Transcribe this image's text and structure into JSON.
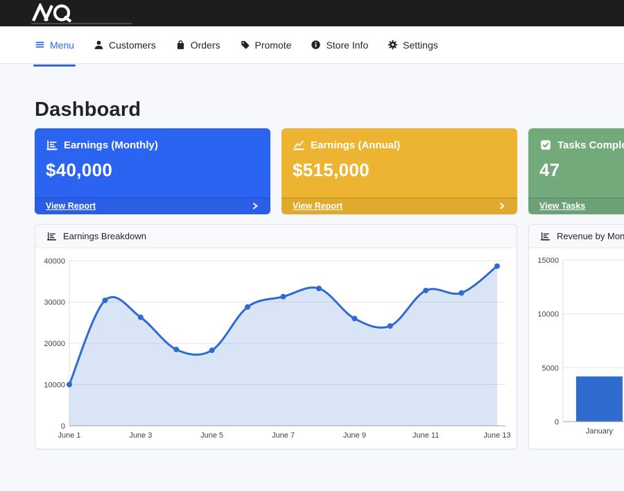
{
  "topbar": {
    "logo_icon": "aq-monogram-logo"
  },
  "nav": {
    "items": [
      {
        "label": "Menu",
        "icon": "hamburger-icon",
        "active": true
      },
      {
        "label": "Customers",
        "icon": "person-icon",
        "active": false
      },
      {
        "label": "Orders",
        "icon": "shopping-bag-icon",
        "active": false
      },
      {
        "label": "Promote",
        "icon": "tag-icon",
        "active": false
      },
      {
        "label": "Store Info",
        "icon": "info-circle-icon",
        "active": false
      },
      {
        "label": "Settings",
        "icon": "gear-icon",
        "active": false
      }
    ]
  },
  "page": {
    "title": "Dashboard"
  },
  "cards": [
    {
      "title": "Earnings (Monthly)",
      "value": "$40,000",
      "link": "View Report",
      "color": "#2c64f2",
      "icon": "bar-chart-icon"
    },
    {
      "title": "Earnings (Annual)",
      "value": "$515,000",
      "link": "View Report",
      "color": "#edb431",
      "icon": "line-chart-icon"
    },
    {
      "title": "Tasks Completed",
      "value": "47",
      "link": "View Tasks",
      "color": "#72aa7c",
      "icon": "check-square-icon"
    }
  ],
  "panels": [
    {
      "title": "Earnings Breakdown",
      "icon": "bar-chart-icon"
    },
    {
      "title": "Revenue by Month",
      "icon": "bar-chart-icon"
    }
  ],
  "chart_data": [
    {
      "type": "area",
      "title": "Earnings Breakdown",
      "x": [
        "June 1",
        "June 2",
        "June 3",
        "June 4",
        "June 5",
        "June 6",
        "June 7",
        "June 8",
        "June 9",
        "June 10",
        "June 11",
        "June 12",
        "June 13"
      ],
      "values": [
        10000,
        30400,
        26300,
        18500,
        18300,
        28800,
        31300,
        33300,
        26000,
        24200,
        32800,
        32200,
        38700
      ],
      "xlabel": "",
      "ylabel": "",
      "ylim": [
        0,
        40000
      ],
      "yticks": [
        0,
        10000,
        20000,
        30000,
        40000
      ],
      "xtick_every": 2,
      "grid": true,
      "legend": "none",
      "line_color": "#2f6bce",
      "fill_color": "rgba(47,107,206,0.18)"
    },
    {
      "type": "bar",
      "title": "Revenue by Month",
      "categories": [
        "January"
      ],
      "values": [
        4200
      ],
      "xlabel": "",
      "ylabel": "",
      "ylim": [
        0,
        15000
      ],
      "yticks": [
        0,
        5000,
        10000,
        15000
      ],
      "grid": true,
      "legend": "none",
      "bar_color": "#2f6bce"
    }
  ],
  "colors": {
    "accent_blue": "#2c64f2",
    "topbar_bg": "#1c1d1f",
    "page_bg": "#f7f8fb",
    "chart_blue": "#2f6bce"
  }
}
